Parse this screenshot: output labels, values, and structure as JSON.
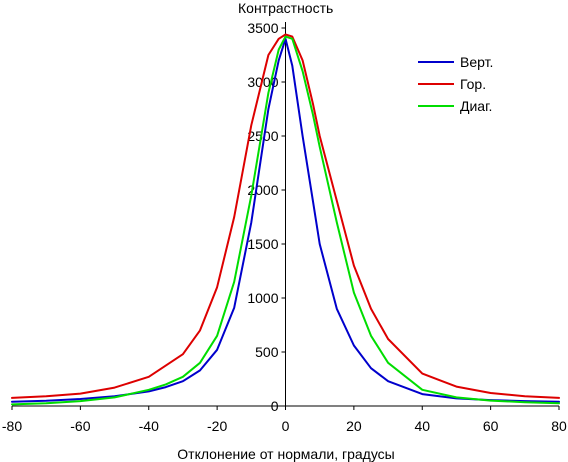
{
  "chart_data": {
    "type": "line",
    "title": "",
    "xlabel": "Отклонение от нормали, градусы",
    "ylabel": "Контрастность",
    "xlim": [
      -80,
      80
    ],
    "ylim": [
      0,
      3500
    ],
    "xticks": [
      "-80",
      "-60",
      "-40",
      "-20",
      "0",
      "20",
      "40",
      "60",
      "80"
    ],
    "yticks": [
      "0",
      "500",
      "1000",
      "1500",
      "2000",
      "2500",
      "3000",
      "3500"
    ],
    "grid": false,
    "legend_position": "top-right",
    "series": [
      {
        "name": "Верт.",
        "color": "#0000cc",
        "x": [
          -80,
          -70,
          -60,
          -50,
          -40,
          -35,
          -30,
          -25,
          -20,
          -15,
          -10,
          -5,
          -2,
          0,
          2,
          5,
          8,
          10,
          15,
          20,
          25,
          30,
          40,
          50,
          60,
          70,
          80
        ],
        "y": [
          40,
          48,
          65,
          90,
          135,
          175,
          230,
          330,
          520,
          910,
          1700,
          2750,
          3200,
          3400,
          3150,
          2500,
          1900,
          1500,
          900,
          560,
          350,
          230,
          110,
          70,
          55,
          45,
          40
        ]
      },
      {
        "name": "Гор.",
        "color": "#dd0000",
        "x": [
          -80,
          -70,
          -60,
          -50,
          -40,
          -30,
          -25,
          -20,
          -15,
          -10,
          -5,
          -2,
          0,
          2,
          5,
          8,
          10,
          15,
          20,
          25,
          30,
          40,
          50,
          60,
          70,
          80
        ],
        "y": [
          75,
          90,
          115,
          170,
          270,
          480,
          700,
          1100,
          1750,
          2600,
          3250,
          3400,
          3440,
          3420,
          3200,
          2800,
          2500,
          1900,
          1300,
          900,
          620,
          300,
          180,
          120,
          90,
          75
        ]
      },
      {
        "name": "Диаг.",
        "color": "#00dd00",
        "x": [
          -80,
          -70,
          -60,
          -50,
          -40,
          -35,
          -30,
          -25,
          -20,
          -15,
          -10,
          -5,
          -2,
          0,
          2,
          5,
          8,
          10,
          15,
          20,
          25,
          30,
          40,
          50,
          60,
          70,
          80
        ],
        "y": [
          15,
          25,
          45,
          80,
          150,
          200,
          270,
          400,
          650,
          1150,
          1950,
          2900,
          3300,
          3420,
          3400,
          3100,
          2700,
          2400,
          1700,
          1050,
          650,
          400,
          150,
          80,
          50,
          35,
          25
        ]
      }
    ]
  }
}
